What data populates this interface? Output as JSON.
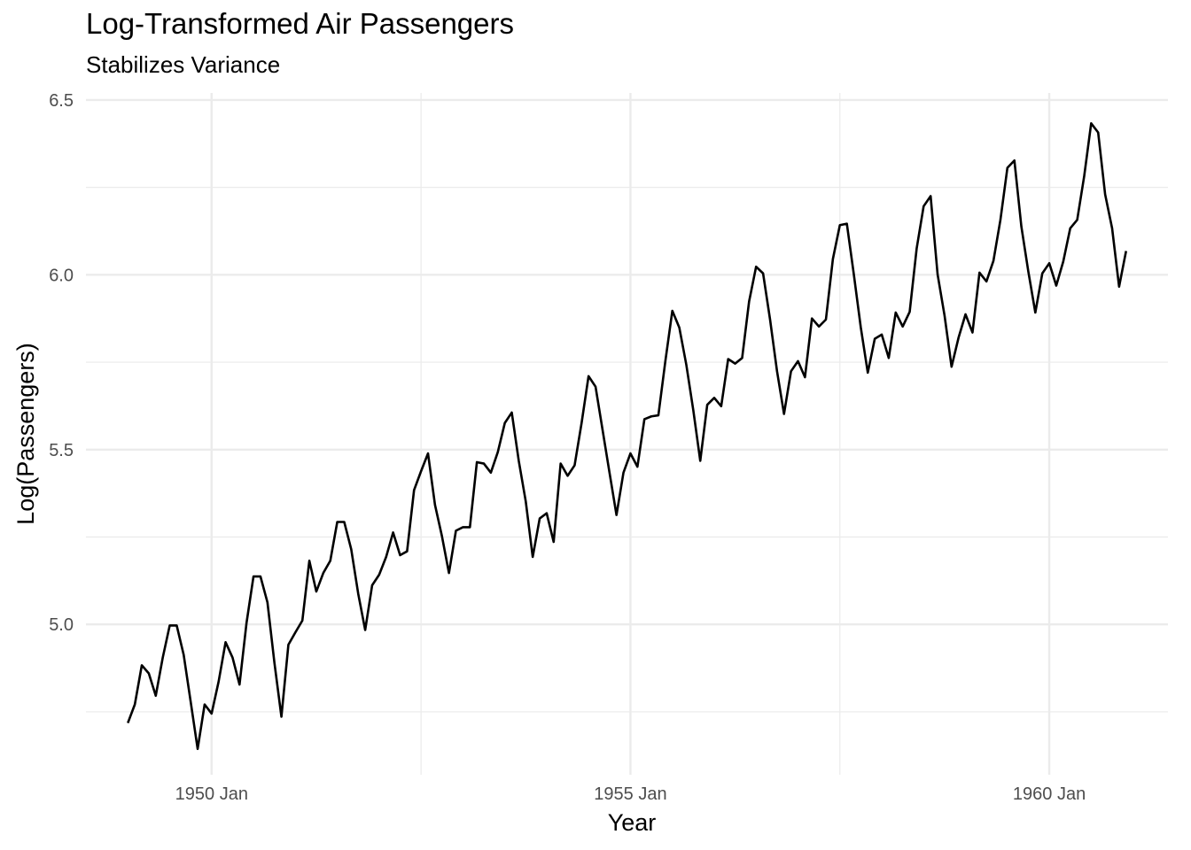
{
  "chart_data": {
    "type": "line",
    "title": "Log-Transformed Air Passengers",
    "subtitle": "Stabilizes Variance",
    "xlabel": "Year",
    "ylabel": "Log(Passengers)",
    "x_start": "1949-01",
    "x_frequency": "monthly",
    "xlim": [
      "1948-07",
      "1961-06"
    ],
    "ylim": [
      4.57,
      6.52
    ],
    "x_ticks": [
      {
        "label": "1950 Jan",
        "value": "1950-01"
      },
      {
        "label": "1955 Jan",
        "value": "1955-01"
      },
      {
        "label": "1960 Jan",
        "value": "1960-01"
      }
    ],
    "y_ticks": [
      5.0,
      5.5,
      6.0,
      6.5
    ],
    "y_tick_labels": [
      "5.0",
      "5.5",
      "6.0",
      "6.5"
    ],
    "grid": true,
    "line_color": "#000000",
    "series": [
      {
        "values": [
          4.718,
          4.771,
          4.883,
          4.86,
          4.796,
          4.905,
          4.997,
          4.997,
          4.913,
          4.779,
          4.644,
          4.771,
          4.745,
          4.836,
          4.949,
          4.905,
          4.828,
          5.004,
          5.137,
          5.137,
          5.063,
          4.89,
          4.736,
          4.942,
          4.977,
          5.011,
          5.182,
          5.094,
          5.147,
          5.182,
          5.293,
          5.293,
          5.215,
          5.088,
          4.984,
          5.112,
          5.142,
          5.193,
          5.263,
          5.198,
          5.209,
          5.384,
          5.438,
          5.489,
          5.342,
          5.252,
          5.147,
          5.268,
          5.278,
          5.278,
          5.464,
          5.46,
          5.434,
          5.493,
          5.576,
          5.606,
          5.468,
          5.352,
          5.193,
          5.303,
          5.318,
          5.236,
          5.46,
          5.425,
          5.455,
          5.576,
          5.71,
          5.68,
          5.557,
          5.434,
          5.313,
          5.434,
          5.489,
          5.451,
          5.587,
          5.595,
          5.598,
          5.753,
          5.897,
          5.849,
          5.743,
          5.613,
          5.468,
          5.628,
          5.648,
          5.624,
          5.759,
          5.746,
          5.762,
          5.924,
          6.023,
          6.004,
          5.872,
          5.724,
          5.602,
          5.724,
          5.753,
          5.707,
          5.875,
          5.852,
          5.872,
          6.045,
          6.142,
          6.146,
          6.001,
          5.849,
          5.72,
          5.817,
          5.829,
          5.762,
          5.892,
          5.852,
          5.894,
          6.075,
          6.196,
          6.225,
          6.001,
          5.883,
          5.737,
          5.82,
          5.887,
          5.835,
          6.006,
          5.981,
          6.04,
          6.157,
          6.306,
          6.327,
          6.138,
          6.009,
          5.892,
          6.004,
          6.033,
          5.969,
          6.038,
          6.133,
          6.157,
          6.282,
          6.433,
          6.407,
          6.23,
          6.133,
          5.966,
          6.068
        ]
      }
    ]
  }
}
